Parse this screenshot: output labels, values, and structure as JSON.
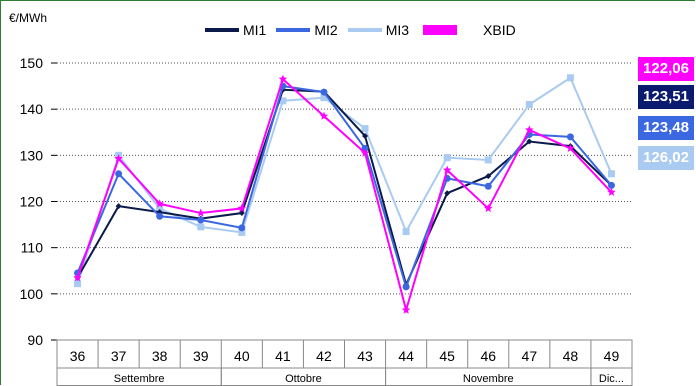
{
  "chart_data": {
    "type": "line",
    "ylabel": "€/MWh",
    "ylim": [
      90,
      150
    ],
    "yticks": [
      90,
      100,
      110,
      120,
      130,
      140,
      150
    ],
    "categories": [
      "36",
      "37",
      "38",
      "39",
      "40",
      "41",
      "42",
      "43",
      "44",
      "45",
      "46",
      "47",
      "48",
      "49"
    ],
    "months": [
      {
        "label": "Settembre",
        "from": 0,
        "to": 3
      },
      {
        "label": "Ottobre",
        "from": 4,
        "to": 7
      },
      {
        "label": "Novembre",
        "from": 8,
        "to": 12
      },
      {
        "label": "Dic...",
        "from": 13,
        "to": 13
      }
    ],
    "grid": true,
    "legend_position": "top",
    "series": [
      {
        "name": "MI1",
        "color": "#0a1a4a",
        "marker": "diamond",
        "values": [
          103.5,
          119.0,
          117.7,
          116.3,
          117.5,
          144.2,
          143.8,
          134.2,
          102.0,
          121.8,
          125.5,
          133.0,
          132.0,
          123.5
        ]
      },
      {
        "name": "MI2",
        "color": "#3b68e0",
        "marker": "circle",
        "values": [
          104.5,
          126.0,
          116.8,
          116.0,
          114.3,
          145.0,
          143.7,
          131.5,
          101.5,
          125.0,
          123.3,
          134.5,
          134.0,
          123.5
        ]
      },
      {
        "name": "MI3",
        "color": "#a9cbf2",
        "marker": "square",
        "values": [
          102.2,
          130.0,
          118.5,
          114.5,
          113.3,
          141.8,
          142.5,
          135.8,
          113.5,
          129.5,
          129.0,
          141.0,
          146.8,
          126.0
        ]
      },
      {
        "name": "XBID",
        "color": "#ff00ff",
        "marker": "star",
        "values": [
          103.5,
          129.3,
          119.5,
          117.5,
          118.5,
          146.5,
          138.5,
          130.5,
          96.5,
          126.8,
          118.5,
          135.5,
          131.5,
          122.0
        ]
      }
    ]
  },
  "badges": [
    {
      "value": "122,06",
      "color": "#ff00ff"
    },
    {
      "value": "123,51",
      "color": "#0a1a6e"
    },
    {
      "value": "123,48",
      "color": "#3b68e0"
    },
    {
      "value": "126,02",
      "color": "#a9cbf2"
    }
  ]
}
